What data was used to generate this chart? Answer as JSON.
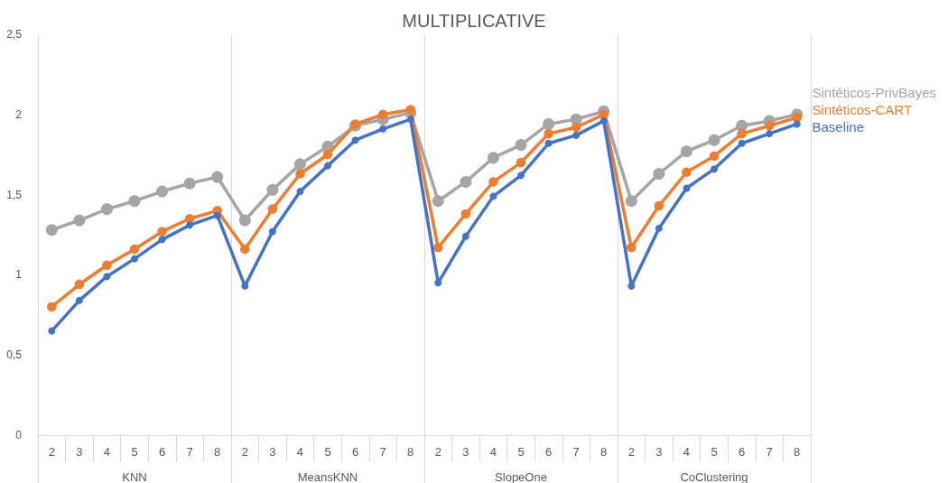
{
  "chart_data": {
    "type": "line",
    "title": "MULTIPLICATIVE",
    "categories": [
      "2",
      "3",
      "4",
      "5",
      "6",
      "7",
      "8",
      "2",
      "3",
      "4",
      "5",
      "6",
      "7",
      "8",
      "2",
      "3",
      "4",
      "5",
      "6",
      "7",
      "8",
      "2",
      "3",
      "4",
      "5",
      "6",
      "7",
      "8"
    ],
    "annotations": [
      "KNN",
      "MeansKNN",
      "SlopeOne",
      "CoClustering"
    ],
    "series": [
      {
        "name": "Sintéticos-PrivBayes",
        "color": "#a5a5a5",
        "values": [
          1.28,
          1.34,
          1.41,
          1.46,
          1.52,
          1.57,
          1.61,
          1.34,
          1.53,
          1.69,
          1.8,
          1.93,
          1.97,
          2.01,
          1.46,
          1.58,
          1.73,
          1.81,
          1.94,
          1.97,
          2.02,
          1.46,
          1.63,
          1.77,
          1.84,
          1.93,
          1.96,
          2.0
        ]
      },
      {
        "name": "Sintéticos-CART",
        "color": "#ed7d31",
        "values": [
          0.8,
          0.94,
          1.06,
          1.16,
          1.27,
          1.35,
          1.4,
          1.16,
          1.41,
          1.63,
          1.75,
          1.94,
          2.0,
          2.03,
          1.17,
          1.38,
          1.58,
          1.7,
          1.88,
          1.92,
          2.0,
          1.17,
          1.43,
          1.64,
          1.74,
          1.88,
          1.93,
          1.98
        ]
      },
      {
        "name": "Baseline",
        "color": "#4472c4",
        "values": [
          0.65,
          0.84,
          0.99,
          1.1,
          1.22,
          1.31,
          1.37,
          0.93,
          1.27,
          1.52,
          1.68,
          1.84,
          1.91,
          1.97,
          0.95,
          1.24,
          1.49,
          1.62,
          1.82,
          1.87,
          1.96,
          0.93,
          1.29,
          1.54,
          1.66,
          1.82,
          1.88,
          1.94
        ]
      }
    ],
    "ylim": [
      0,
      2.5
    ],
    "yticks": [
      0,
      {
        "value": 0.5,
        "label": "0,5"
      },
      1,
      {
        "value": 1.5,
        "label": "1,5"
      },
      2,
      {
        "value": 2.5,
        "label": "2,5"
      }
    ],
    "grid": false,
    "legend": "right",
    "marker": "circle",
    "line_style": "solid"
  }
}
